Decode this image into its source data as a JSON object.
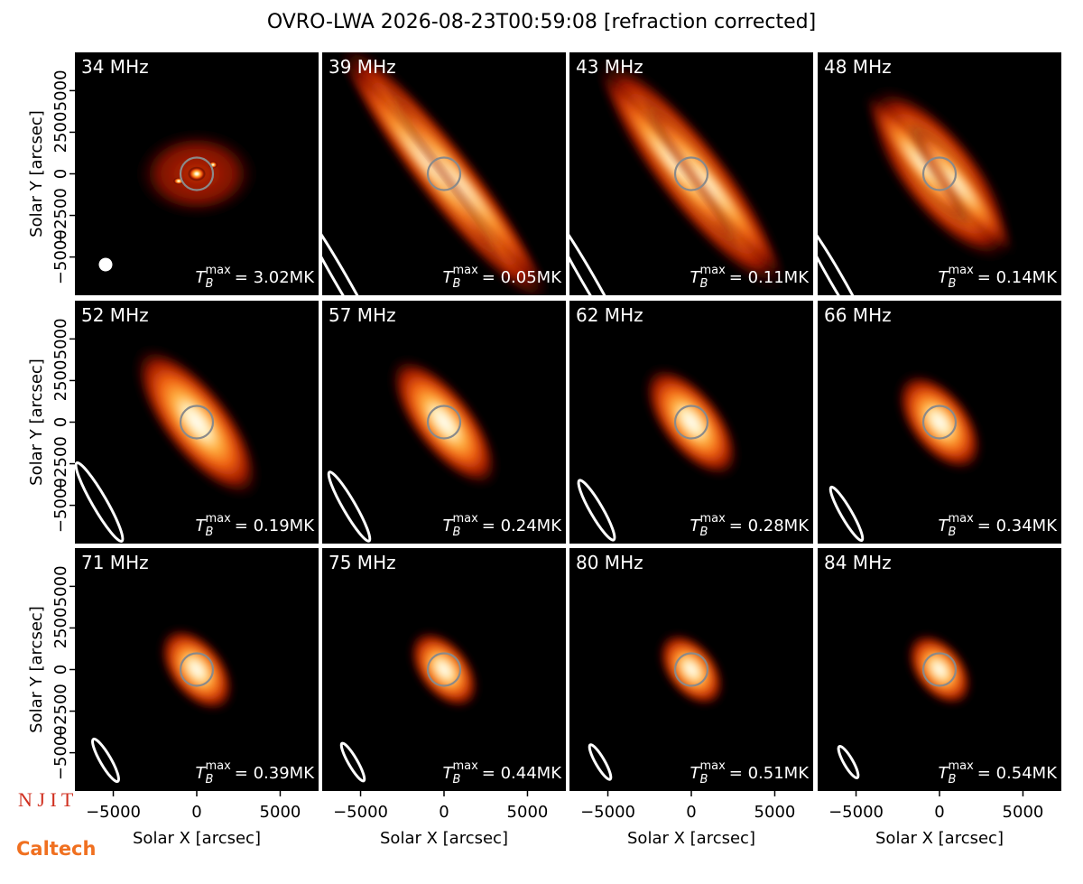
{
  "chart_data": {
    "type": "image",
    "title": "OVRO-LWA 2026-08-23T00:59:08 [refraction corrected]",
    "x_label": "Solar X [arcsec]",
    "y_label": "Solar Y [arcsec]",
    "xlim": [
      -7300,
      7300
    ],
    "ylim": [
      -7300,
      7300
    ],
    "xticks": [
      {
        "value": -5000,
        "label": "−5000"
      },
      0,
      5000
    ],
    "yticks": [
      {
        "value": -5000,
        "label": "−5000"
      },
      {
        "value": -2500,
        "label": "−2500"
      },
      0,
      2500,
      5000
    ],
    "tb_symbol": {
      "base": "T",
      "sub": "B",
      "sup": "max"
    },
    "panels": [
      {
        "frequency": "34 MHz",
        "tb_max": "= 3.02MK"
      },
      {
        "frequency": "39 MHz",
        "tb_max": "= 0.05MK"
      },
      {
        "frequency": "43 MHz",
        "tb_max": "= 0.11MK"
      },
      {
        "frequency": "48 MHz",
        "tb_max": "= 0.14MK"
      },
      {
        "frequency": "52 MHz",
        "tb_max": "= 0.19MK"
      },
      {
        "frequency": "57 MHz",
        "tb_max": "= 0.24MK"
      },
      {
        "frequency": "62 MHz",
        "tb_max": "= 0.28MK"
      },
      {
        "frequency": "66 MHz",
        "tb_max": "= 0.34MK"
      },
      {
        "frequency": "71 MHz",
        "tb_max": "= 0.39MK"
      },
      {
        "frequency": "75 MHz",
        "tb_max": "= 0.44MK"
      },
      {
        "frequency": "80 MHz",
        "tb_max": "= 0.51MK"
      },
      {
        "frequency": "84 MHz",
        "tb_max": "= 0.54MK"
      }
    ],
    "logos": [
      "N J I T",
      "Caltech"
    ]
  }
}
